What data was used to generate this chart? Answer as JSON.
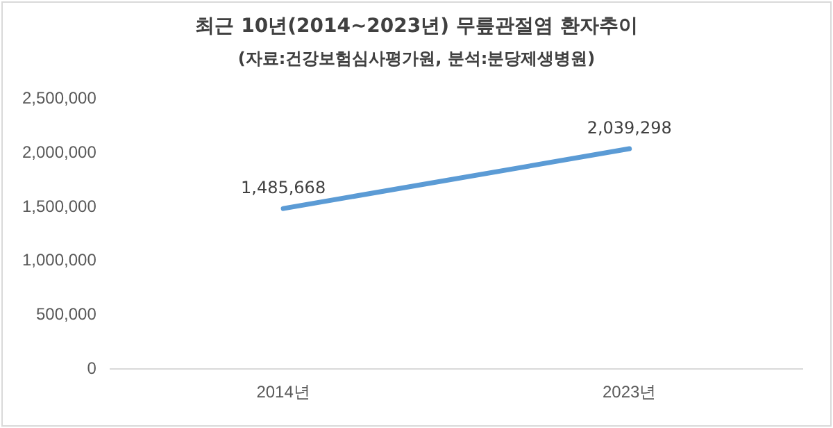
{
  "chart_data": {
    "type": "line",
    "title": "최근 10년(2014~2023년) 무릎관절염 환자추이",
    "subtitle": "(자료:건강보험심사평가원, 분석:분당제생병원)",
    "categories": [
      "2014년",
      "2023년"
    ],
    "series": [
      {
        "color": "#5b9bd5",
        "values": [
          1485668,
          2039298
        ],
        "value_labels": [
          "1,485,668",
          "2,039,298"
        ]
      }
    ],
    "ylim": [
      0,
      2500000
    ],
    "yticks": [
      {
        "value": 0,
        "label": "0"
      },
      {
        "value": 500000,
        "label": "500,000"
      },
      {
        "value": 1000000,
        "label": "1,000,000"
      },
      {
        "value": 1500000,
        "label": "1,500,000"
      },
      {
        "value": 2000000,
        "label": "2,000,000"
      },
      {
        "value": 2500000,
        "label": "2,500,000"
      }
    ],
    "grid": false,
    "legend": false,
    "marker": "none",
    "line_style": "solid"
  }
}
